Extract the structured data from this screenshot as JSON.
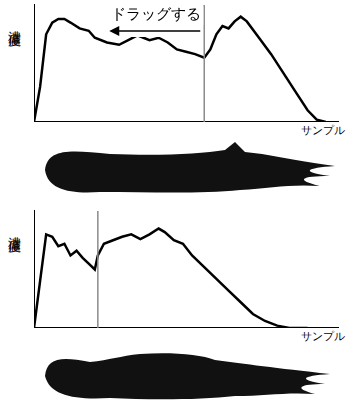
{
  "chart_data": [
    {
      "type": "line",
      "ylabel": "濃度値",
      "xlabel": "サンプル",
      "annotation": "ドラッグする",
      "color": "#000000",
      "tick_labels": false,
      "grid": false,
      "xlim": [
        0,
        100
      ],
      "ylim": [
        0,
        100
      ],
      "vline": 56,
      "x": [
        0,
        2,
        4,
        6,
        8,
        10,
        12,
        15,
        18,
        20,
        24,
        28,
        31,
        34,
        36,
        38,
        41,
        44,
        47,
        50,
        53,
        56,
        58,
        60,
        62,
        64,
        66,
        68,
        70,
        74,
        78,
        82,
        86,
        90,
        93,
        96
      ],
      "values": [
        0,
        30,
        75,
        85,
        88,
        88,
        85,
        80,
        78,
        72,
        68,
        66,
        70,
        74,
        72,
        70,
        72,
        68,
        62,
        60,
        58,
        55,
        62,
        75,
        82,
        80,
        86,
        90,
        86,
        72,
        58,
        42,
        26,
        10,
        2,
        0
      ]
    },
    {
      "type": "line",
      "ylabel": "濃度値",
      "xlabel": "サンプル",
      "color": "#000000",
      "tick_labels": false,
      "grid": false,
      "xlim": [
        0,
        100
      ],
      "ylim": [
        0,
        100
      ],
      "vline": 21,
      "x": [
        0,
        2,
        4,
        6,
        8,
        10,
        12,
        14,
        16,
        18,
        20,
        21,
        23,
        26,
        29,
        32,
        35,
        38,
        41,
        43,
        46,
        49,
        52,
        56,
        60,
        64,
        68,
        72,
        76,
        80,
        84,
        90
      ],
      "values": [
        0,
        40,
        80,
        78,
        70,
        72,
        62,
        66,
        60,
        55,
        50,
        62,
        72,
        75,
        78,
        80,
        76,
        80,
        85,
        82,
        75,
        72,
        62,
        52,
        42,
        32,
        22,
        12,
        6,
        2,
        0,
        0
      ]
    }
  ]
}
